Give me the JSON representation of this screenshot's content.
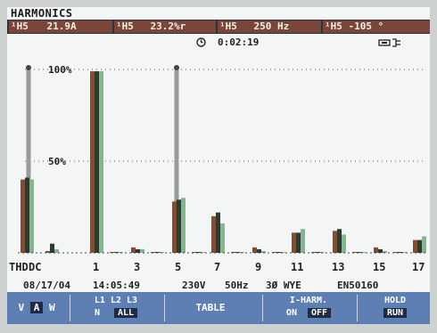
{
  "screen": {
    "title": "HARMONICS",
    "readouts": [
      {
        "label": "¹H5",
        "value": "21.9A"
      },
      {
        "label": "¹H5",
        "value": "23.2%r"
      },
      {
        "label": "¹H5",
        "value": "250 Hz"
      },
      {
        "label": "¹H5",
        "value": "-105 °"
      }
    ],
    "status": {
      "timer_icon": "clock-icon",
      "elapsed": "0:02:19",
      "connection_icon": "mains-plug-icon"
    },
    "footer": {
      "date": "08/17/04",
      "time": "14:05:49",
      "voltage": "230V",
      "frequency": "50Hz",
      "config": "3Ø WYE",
      "standard": "EN50160"
    },
    "softkeys": [
      {
        "line1": "V A W",
        "selected": "A"
      },
      {
        "line1": "L1 L2 L3",
        "line2a": "N",
        "line2b": "ALL"
      },
      {
        "line1": "TABLE"
      },
      {
        "line1": "I-HARM.",
        "line2a": "ON",
        "line2b": "OFF"
      },
      {
        "line1": "HOLD",
        "line2b": "RUN"
      }
    ],
    "colors": {
      "L1": "#8b4a2e",
      "L2": "#2e3a2e",
      "L3": "#7fb88c",
      "readout_bg": "#7a4638",
      "softkey_bg": "#5d7fb4"
    }
  },
  "chart_data": {
    "type": "bar",
    "categories": [
      "THD",
      "DC",
      "1",
      "2",
      "3",
      "4",
      "5",
      "6",
      "7",
      "8",
      "9",
      "10",
      "11",
      "12",
      "13",
      "14",
      "15",
      "16",
      "17"
    ],
    "tick_labels": [
      "THD",
      "DC",
      "1",
      "3",
      "5",
      "7",
      "9",
      "11",
      "13",
      "15",
      "17"
    ],
    "y_tick_labels": [
      "100%",
      "50%"
    ],
    "ylim": [
      0,
      100
    ],
    "cursor_positions": [
      "DC",
      "5"
    ],
    "series": [
      {
        "values": [
          40,
          1,
          99,
          0.5,
          3,
          0.5,
          28,
          0.5,
          20,
          0.5,
          3,
          0.5,
          11,
          0.5,
          12,
          0.5,
          3,
          0.5,
          7
        ]
      },
      {
        "values": [
          41,
          5,
          99,
          0.5,
          2,
          0.5,
          29,
          0.5,
          22,
          0.5,
          2,
          0.5,
          11,
          0.5,
          13,
          0.5,
          2,
          0.5,
          7
        ]
      },
      {
        "values": [
          40,
          2,
          99,
          0.5,
          2,
          0.5,
          30,
          0.5,
          16,
          0.5,
          1,
          0.5,
          13,
          0.5,
          10,
          0.5,
          1,
          0.5,
          9
        ]
      }
    ]
  }
}
